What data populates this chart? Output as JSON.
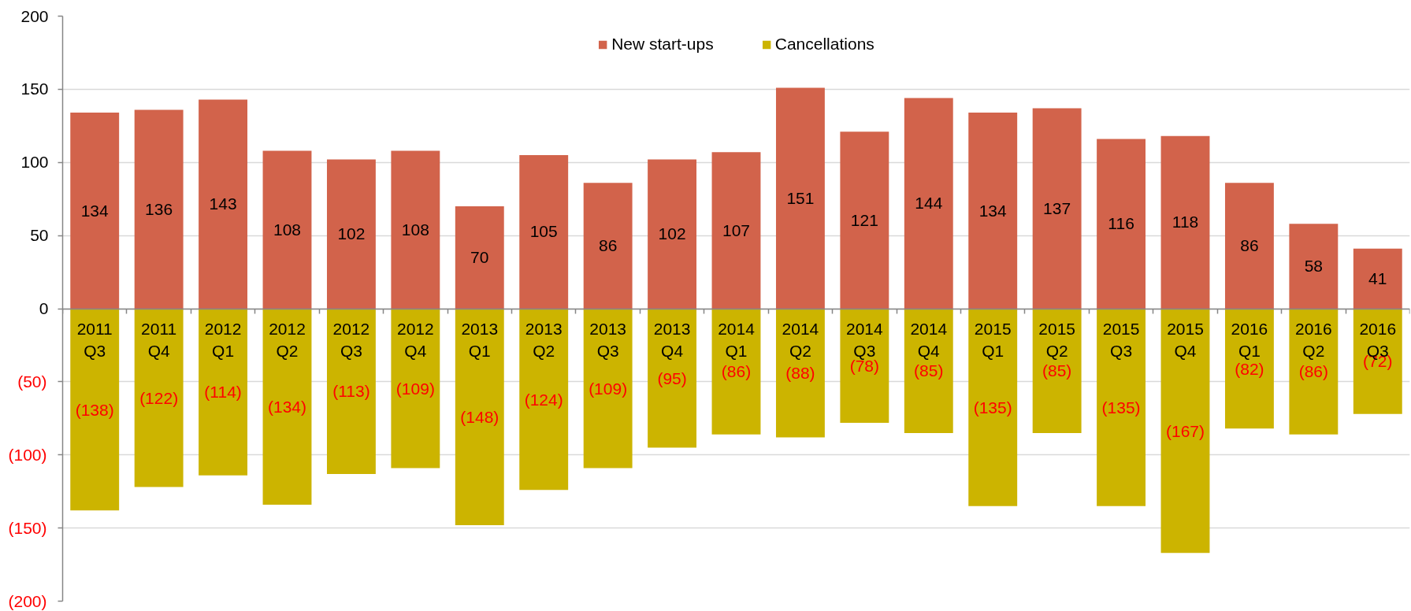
{
  "chart_data": {
    "type": "bar",
    "stacked": true,
    "categories": [
      "2011\nQ3",
      "2011\nQ4",
      "2012\nQ1",
      "2012\nQ2",
      "2012\nQ3",
      "2012\nQ4",
      "2013\nQ1",
      "2013\nQ2",
      "2013\nQ3",
      "2013\nQ4",
      "2014\nQ1",
      "2014\nQ2",
      "2014\nQ3",
      "2014\nQ4",
      "2015\nQ1",
      "2015\nQ2",
      "2015\nQ3",
      "2015\nQ4",
      "2016\nQ1",
      "2016\nQ2",
      "2016\nQ3"
    ],
    "series": [
      {
        "name": "New start-ups",
        "color": "#d2634b",
        "values": [
          134,
          136,
          143,
          108,
          102,
          108,
          70,
          105,
          86,
          102,
          107,
          151,
          121,
          144,
          134,
          137,
          116,
          118,
          86,
          58,
          41
        ],
        "value_labels": [
          "134",
          "136",
          "143",
          "108",
          "102",
          "108",
          "70",
          "105",
          "86",
          "102",
          "107",
          "151",
          "121",
          "144",
          "134",
          "137",
          "116",
          "118",
          "86",
          "58",
          "41"
        ]
      },
      {
        "name": "Cancellations",
        "color": "#ccb400",
        "values": [
          -138,
          -122,
          -114,
          -134,
          -113,
          -109,
          -148,
          -124,
          -109,
          -95,
          -86,
          -88,
          -78,
          -85,
          -135,
          -85,
          -135,
          -167,
          -82,
          -86,
          -72
        ],
        "value_labels": [
          "(138)",
          "(122)",
          "(114)",
          "(134)",
          "(113)",
          "(109)",
          "(148)",
          "(124)",
          "(109)",
          "(95)",
          "(86)",
          "(88)",
          "(78)",
          "(85)",
          "(135)",
          "(85)",
          "(135)",
          "(167)",
          "(82)",
          "(86)",
          "(72)"
        ]
      }
    ],
    "ylim": [
      -200,
      200
    ],
    "yticks": [
      {
        "value": -200,
        "label": "(200)"
      },
      {
        "value": -150,
        "label": "(150)"
      },
      {
        "value": -100,
        "label": "(100)"
      },
      {
        "value": -50,
        "label": "(50)"
      },
      0,
      50,
      100,
      150,
      200
    ],
    "grid": "y",
    "legend": "top"
  }
}
